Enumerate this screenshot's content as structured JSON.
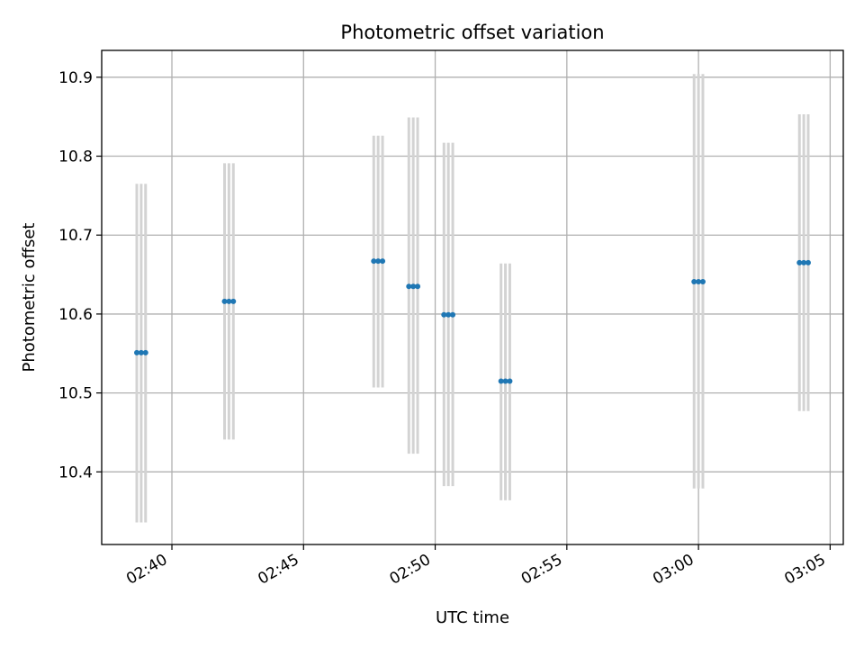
{
  "chart_data": {
    "type": "scatter",
    "title": "Photometric offset variation",
    "xlabel": "UTC time",
    "ylabel": "Photometric offset",
    "x_axis_kind": "time",
    "xlim": [
      "02:37:20",
      "03:05:30"
    ],
    "ylim": [
      10.308,
      10.934
    ],
    "x_ticks": [
      "02:40",
      "02:45",
      "02:50",
      "02:55",
      "03:00",
      "03:05"
    ],
    "y_ticks": [
      10.4,
      10.5,
      10.6,
      10.7,
      10.8,
      10.9
    ],
    "y_tick_labels": [
      "10.4",
      "10.5",
      "10.6",
      "10.7",
      "10.8",
      "10.9"
    ],
    "grid": true,
    "legend": "none",
    "colors": {
      "points": "#1f77b4",
      "errorbars": "#d3d3d3",
      "grid": "#b0b0b0"
    },
    "series": [
      {
        "points": [
          {
            "x": "02:38:40",
            "y": 10.551,
            "ymin": 10.336,
            "ymax": 10.765
          },
          {
            "x": "02:38:50",
            "y": 10.551,
            "ymin": 10.336,
            "ymax": 10.765
          },
          {
            "x": "02:39:00",
            "y": 10.551,
            "ymin": 10.336,
            "ymax": 10.765
          },
          {
            "x": "02:42:00",
            "y": 10.616,
            "ymin": 10.441,
            "ymax": 10.791
          },
          {
            "x": "02:42:10",
            "y": 10.616,
            "ymin": 10.441,
            "ymax": 10.791
          },
          {
            "x": "02:42:20",
            "y": 10.616,
            "ymin": 10.441,
            "ymax": 10.791
          },
          {
            "x": "02:47:40",
            "y": 10.667,
            "ymin": 10.507,
            "ymax": 10.826
          },
          {
            "x": "02:47:50",
            "y": 10.667,
            "ymin": 10.507,
            "ymax": 10.826
          },
          {
            "x": "02:48:00",
            "y": 10.667,
            "ymin": 10.507,
            "ymax": 10.826
          },
          {
            "x": "02:49:00",
            "y": 10.635,
            "ymin": 10.423,
            "ymax": 10.849
          },
          {
            "x": "02:49:10",
            "y": 10.635,
            "ymin": 10.423,
            "ymax": 10.849
          },
          {
            "x": "02:49:20",
            "y": 10.635,
            "ymin": 10.423,
            "ymax": 10.849
          },
          {
            "x": "02:50:20",
            "y": 10.599,
            "ymin": 10.382,
            "ymax": 10.817
          },
          {
            "x": "02:50:30",
            "y": 10.599,
            "ymin": 10.382,
            "ymax": 10.817
          },
          {
            "x": "02:50:40",
            "y": 10.599,
            "ymin": 10.382,
            "ymax": 10.817
          },
          {
            "x": "02:52:30",
            "y": 10.515,
            "ymin": 10.364,
            "ymax": 10.664
          },
          {
            "x": "02:52:40",
            "y": 10.515,
            "ymin": 10.364,
            "ymax": 10.664
          },
          {
            "x": "02:52:50",
            "y": 10.515,
            "ymin": 10.364,
            "ymax": 10.664
          },
          {
            "x": "02:59:50",
            "y": 10.641,
            "ymin": 10.379,
            "ymax": 10.904
          },
          {
            "x": "03:00:00",
            "y": 10.641,
            "ymin": 10.379,
            "ymax": 10.904
          },
          {
            "x": "03:00:10",
            "y": 10.641,
            "ymin": 10.379,
            "ymax": 10.904
          },
          {
            "x": "03:03:50",
            "y": 10.665,
            "ymin": 10.477,
            "ymax": 10.853
          },
          {
            "x": "03:04:00",
            "y": 10.665,
            "ymin": 10.477,
            "ymax": 10.853
          },
          {
            "x": "03:04:10",
            "y": 10.665,
            "ymin": 10.477,
            "ymax": 10.853
          }
        ]
      }
    ]
  }
}
